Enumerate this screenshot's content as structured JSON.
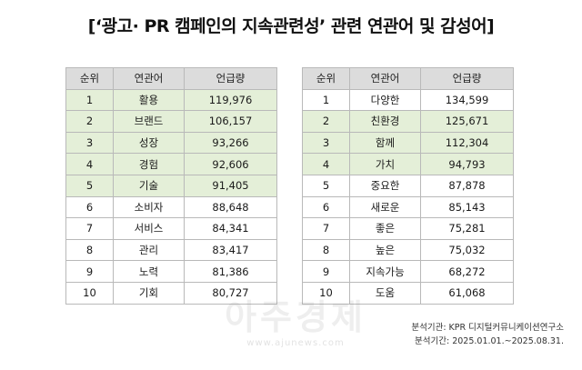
{
  "title": "[‘광고· PR 캠페인의 지속관련성’ 관련 연관어 및 감성어]",
  "columns": [
    "순위",
    "연관어",
    "언급량"
  ],
  "left_table": [
    {
      "rank": "1",
      "term": "활용",
      "count": "119,976",
      "highlight": true
    },
    {
      "rank": "2",
      "term": "브랜드",
      "count": "106,157",
      "highlight": true
    },
    {
      "rank": "3",
      "term": "성장",
      "count": "93,266",
      "highlight": true
    },
    {
      "rank": "4",
      "term": "경험",
      "count": "92,606",
      "highlight": true
    },
    {
      "rank": "5",
      "term": "기술",
      "count": "91,405",
      "highlight": true
    },
    {
      "rank": "6",
      "term": "소비자",
      "count": "88,648",
      "highlight": false
    },
    {
      "rank": "7",
      "term": "서비스",
      "count": "84,341",
      "highlight": false
    },
    {
      "rank": "8",
      "term": "관리",
      "count": "83,417",
      "highlight": false
    },
    {
      "rank": "9",
      "term": "노력",
      "count": "81,386",
      "highlight": false
    },
    {
      "rank": "10",
      "term": "기회",
      "count": "80,727",
      "highlight": false
    }
  ],
  "right_table": [
    {
      "rank": "1",
      "term": "다양한",
      "count": "134,599",
      "highlight": false
    },
    {
      "rank": "2",
      "term": "친환경",
      "count": "125,671",
      "highlight": true
    },
    {
      "rank": "3",
      "term": "함께",
      "count": "112,304",
      "highlight": true
    },
    {
      "rank": "4",
      "term": "가치",
      "count": "94,793",
      "highlight": true
    },
    {
      "rank": "5",
      "term": "중요한",
      "count": "87,878",
      "highlight": false
    },
    {
      "rank": "6",
      "term": "새로운",
      "count": "85,143",
      "highlight": false
    },
    {
      "rank": "7",
      "term": "좋은",
      "count": "75,281",
      "highlight": false
    },
    {
      "rank": "8",
      "term": "높은",
      "count": "75,032",
      "highlight": false
    },
    {
      "rank": "9",
      "term": "지속가능",
      "count": "68,272",
      "highlight": false
    },
    {
      "rank": "10",
      "term": "도움",
      "count": "61,068",
      "highlight": false
    }
  ],
  "highlight_color": "#e4efd8",
  "header_color": "#dcdcdc",
  "source_line_1": "분석기관: KPR 디지털커뮤니케이션연구소",
  "source_line_2": "분석기간: 2025.01.01.~2025.08.31.",
  "watermark": "아주경제",
  "watermark_url": "www.ajunews.com"
}
